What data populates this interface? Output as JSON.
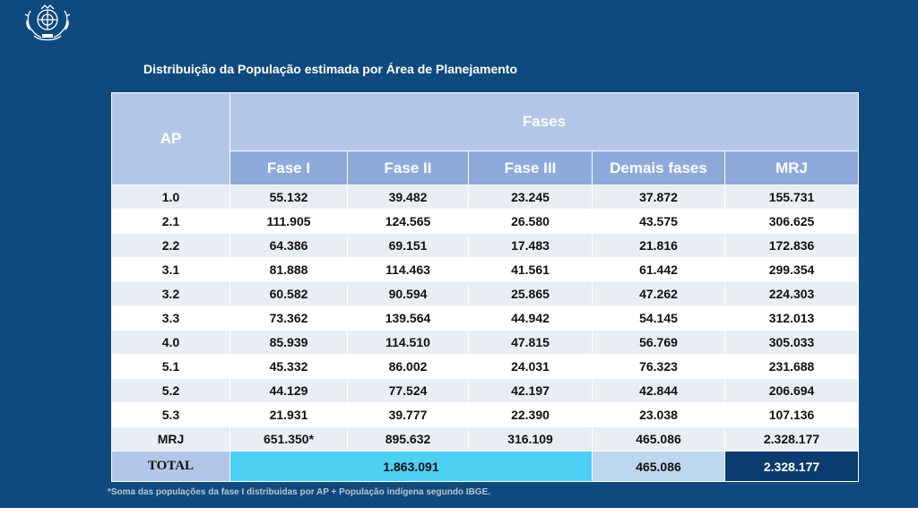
{
  "title": "Distribuição da População estimada por Área de Planejamento",
  "table": {
    "ap_header": "AP",
    "fases_header": "Fases",
    "columns": [
      "Fase I",
      "Fase II",
      "Fase III",
      "Demais fases",
      "MRJ"
    ],
    "rows": [
      {
        "ap": "1.0",
        "values": [
          "55.132",
          "39.482",
          "23.245",
          "37.872",
          "155.731"
        ]
      },
      {
        "ap": "2.1",
        "values": [
          "111.905",
          "124.565",
          "26.580",
          "43.575",
          "306.625"
        ]
      },
      {
        "ap": "2.2",
        "values": [
          "64.386",
          "69.151",
          "17.483",
          "21.816",
          "172.836"
        ]
      },
      {
        "ap": "3.1",
        "values": [
          "81.888",
          "114.463",
          "41.561",
          "61.442",
          "299.354"
        ]
      },
      {
        "ap": "3.2",
        "values": [
          "60.582",
          "90.594",
          "25.865",
          "47.262",
          "224.303"
        ]
      },
      {
        "ap": "3.3",
        "values": [
          "73.362",
          "139.564",
          "44.942",
          "54.145",
          "312.013"
        ]
      },
      {
        "ap": "4.0",
        "values": [
          "85.939",
          "114.510",
          "47.815",
          "56.769",
          "305.033"
        ]
      },
      {
        "ap": "5.1",
        "values": [
          "45.332",
          "86.002",
          "24.031",
          "76.323",
          "231.688"
        ]
      },
      {
        "ap": "5.2",
        "values": [
          "44.129",
          "77.524",
          "42.197",
          "42.844",
          "206.694"
        ]
      },
      {
        "ap": "5.3",
        "values": [
          "21.931",
          "39.777",
          "22.390",
          "23.038",
          "107.136"
        ]
      },
      {
        "ap": "MRJ",
        "values": [
          "651.350*",
          "895.632",
          "316.109",
          "465.086",
          "2.328.177"
        ]
      }
    ],
    "total": {
      "label": "TOTAL",
      "fases_total": "1.863.091",
      "demais": "465.086",
      "mrj": "2.328.177"
    }
  },
  "footnote": "*Soma das populações da fase I distribuidas por AP + População indígena segundo IBGE.",
  "logo_icon": "city-coat-of-arms-icon",
  "colors": {
    "background": "#0f4a7e",
    "header_light": "#b3c6e7",
    "header_mid": "#8eaadb",
    "total_cyan": "#4dd0f4",
    "total_dark": "#0b3c6e"
  }
}
